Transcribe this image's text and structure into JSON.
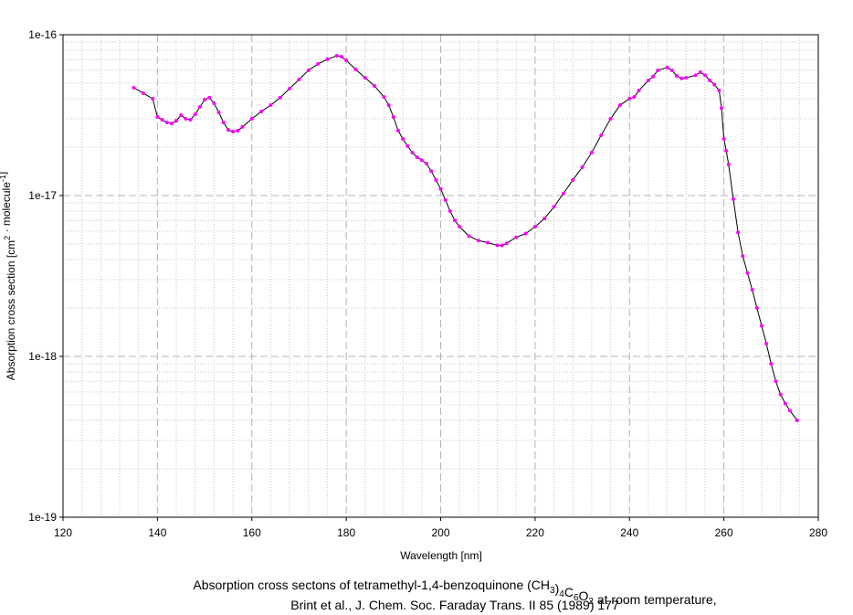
{
  "chart_data": {
    "type": "line",
    "caption": [
      "Absorption cross sectons of tetramethyl-1,4-benzoquinone (CH3)4C6O2 at room temperature,",
      "Brint et al., J. Chem. Soc. Faraday Trans. II 85 (1989) 177"
    ],
    "xlabel": "Wavelength [nm]",
    "ylabel": "Absorption cross section [cm2 · molecule-1]",
    "log_y": true,
    "grid": true,
    "line_color": "#000000",
    "marker_color": "#ff00ff",
    "xlim": [
      120,
      280
    ],
    "xticks": [
      120,
      140,
      160,
      180,
      200,
      220,
      240,
      260,
      280
    ],
    "ylim": [
      1e-19,
      1e-16
    ],
    "yticks": [
      1e-19,
      1e-18,
      1e-17,
      1e-16
    ],
    "x": [
      135,
      137,
      139,
      140,
      141,
      142,
      143,
      144,
      145,
      146,
      147,
      148,
      149,
      150,
      151,
      152,
      153,
      154,
      155,
      156,
      157,
      158,
      160,
      162,
      164,
      166,
      168,
      170,
      172,
      174,
      176,
      178,
      179,
      180,
      182,
      184,
      186,
      188,
      189,
      190,
      191,
      192,
      193,
      194,
      195,
      196,
      197,
      198,
      199,
      200,
      201,
      202,
      203,
      204,
      206,
      208,
      210,
      212,
      213,
      214,
      216,
      218,
      220,
      222,
      224,
      226,
      228,
      230,
      232,
      234,
      236,
      238,
      240,
      241,
      242,
      244,
      245,
      246,
      248,
      249,
      250,
      251,
      252,
      254,
      255,
      256,
      257,
      258,
      259,
      259.5,
      260,
      260.5,
      261,
      262,
      263,
      264,
      265,
      266,
      267,
      268,
      269,
      270,
      271,
      272,
      273,
      274,
      275.5
    ],
    "values": [
      4.68e-17,
      4.33e-17,
      4e-17,
      3.08e-17,
      2.96e-17,
      2.85e-17,
      2.8e-17,
      2.92e-17,
      3.16e-17,
      3e-17,
      2.96e-17,
      3.2e-17,
      3.56e-17,
      3.95e-17,
      4.06e-17,
      3.75e-17,
      3.29e-17,
      2.85e-17,
      2.56e-17,
      2.5e-17,
      2.53e-17,
      2.67e-17,
      3e-17,
      3.33e-17,
      3.65e-17,
      4.06e-17,
      4.63e-17,
      5.27e-17,
      6e-17,
      6.58e-17,
      7.03e-17,
      7.4e-17,
      7.3e-17,
      6.93e-17,
      6.08e-17,
      5.4e-17,
      4.8e-17,
      4.1e-17,
      3.65e-17,
      3.08e-17,
      2.53e-17,
      2.25e-17,
      2.03e-17,
      1.85e-17,
      1.73e-17,
      1.66e-17,
      1.58e-17,
      1.42e-17,
      1.25e-17,
      1.1e-17,
      9.4e-18,
      8e-18,
      7e-18,
      6.4e-18,
      5.6e-18,
      5.25e-18,
      5.1e-18,
      4.9e-18,
      4.9e-18,
      5.05e-18,
      5.5e-18,
      5.8e-18,
      6.4e-18,
      7.2e-18,
      8.5e-18,
      1.03e-17,
      1.25e-17,
      1.5e-17,
      1.85e-17,
      2.37e-17,
      3e-17,
      3.65e-17,
      4e-17,
      4.1e-17,
      4.5e-17,
      5.2e-17,
      5.5e-17,
      6e-17,
      6.25e-17,
      6e-17,
      5.55e-17,
      5.35e-17,
      5.4e-17,
      5.6e-17,
      5.85e-17,
      5.6e-17,
      5.2e-17,
      4.9e-17,
      4.5e-17,
      3.5e-17,
      2.25e-17,
      1.9e-17,
      1.56e-17,
      9.5e-18,
      5.9e-18,
      4.2e-18,
      3.3e-18,
      2.6e-18,
      2e-18,
      1.55e-18,
      1.2e-18,
      9e-19,
      7e-19,
      5.8e-19,
      5.1e-19,
      4.6e-19,
      4e-19
    ]
  }
}
